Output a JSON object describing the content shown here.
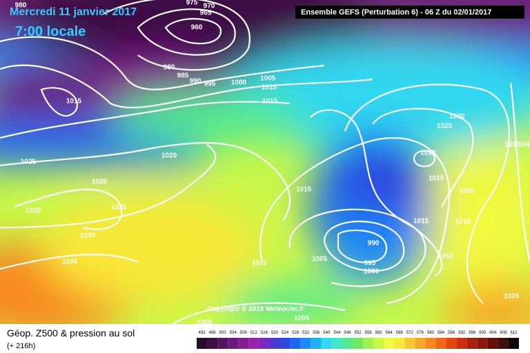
{
  "header": {
    "date": "Mercredi 11 janvier 2017",
    "time": "7:00 locale",
    "model": "Ensemble GEFS  (Perturbation 6)  - 06 Z du 02/01/2017"
  },
  "copyright": "Copyright © 2016 Meteociel.fr",
  "footer": {
    "title": "Géop. Z500 & pression au sol",
    "lead": "(+ 216h)"
  },
  "legend": {
    "levels": [
      492,
      496,
      500,
      504,
      508,
      512,
      516,
      520,
      524,
      528,
      532,
      536,
      540,
      544,
      548,
      552,
      556,
      560,
      564,
      568,
      572,
      576,
      580,
      584,
      588,
      592,
      596,
      600,
      604,
      608,
      612
    ],
    "colors": [
      "#2a0a2e",
      "#3d0f45",
      "#55145e",
      "#6a1a78",
      "#821e92",
      "#9a22a8",
      "#7a2ac0",
      "#4a3ad0",
      "#2a4ae0",
      "#1a6af0",
      "#1a8af8",
      "#20b0f8",
      "#30d8f0",
      "#40e8c8",
      "#50e890",
      "#70e860",
      "#a0f050",
      "#c8f848",
      "#f0f840",
      "#f8e838",
      "#f8c830",
      "#f8a828",
      "#f88820",
      "#f06818",
      "#e04810",
      "#c83010",
      "#a82010",
      "#881808",
      "#601008",
      "#401008",
      "#100808"
    ]
  },
  "isobar_labels": [
    980,
    975,
    970,
    965,
    960,
    980,
    985,
    990,
    995,
    1000,
    1005,
    1010,
    1015,
    1015,
    1025,
    1020,
    1020,
    1025,
    1020,
    1030,
    1035,
    1010,
    1005,
    990,
    995,
    1000,
    1015,
    1030,
    1025,
    1010,
    1015,
    1020,
    1015,
    1010,
    1010,
    1025,
    1030,
    1040,
    1005,
    1005
  ]
}
